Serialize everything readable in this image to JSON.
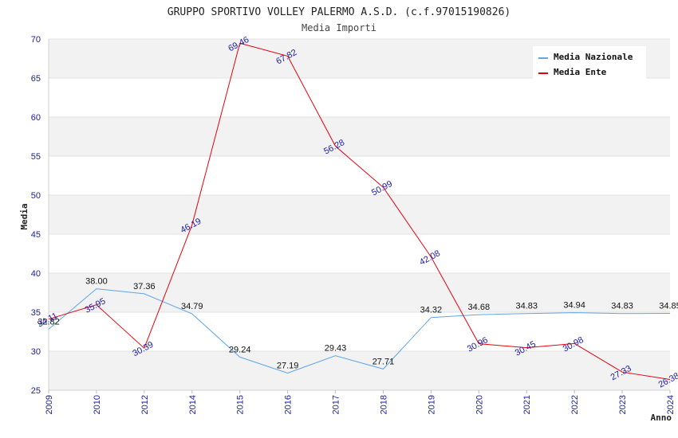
{
  "header": {
    "title": "GRUPPO SPORTIVO VOLLEY PALERMO A.S.D. (c.f.97015190826)",
    "subtitle": "Media Importi"
  },
  "chart_data": {
    "type": "line",
    "title": "GRUPPO SPORTIVO VOLLEY PALERMO A.S.D. (c.f.97015190826)",
    "subtitle": "Media Importi",
    "xlabel": "Anno",
    "ylabel": "Media",
    "ylim": [
      25,
      70
    ],
    "yticks": [
      25,
      30,
      35,
      40,
      45,
      50,
      55,
      60,
      65,
      70
    ],
    "categories": [
      "2009",
      "2010",
      "2012",
      "2014",
      "2015",
      "2016",
      "2017",
      "2018",
      "2019",
      "2020",
      "2021",
      "2022",
      "2023",
      "2024"
    ],
    "series": [
      {
        "name": "Media Nazionale",
        "color": "#5da5e8",
        "values": [
          32.82,
          38.0,
          37.36,
          34.79,
          29.24,
          27.19,
          29.43,
          27.71,
          34.32,
          34.68,
          34.83,
          34.94,
          34.83,
          34.85
        ],
        "labels": [
          "32.82",
          "38.00",
          "37.36",
          "34.79",
          "29.24",
          "27.19",
          "29.43",
          "27.71",
          "34.32",
          "34.68",
          "34.83",
          "34.94",
          "34.83",
          "34.85"
        ]
      },
      {
        "name": "Media Ente",
        "color": "#e8000b",
        "values": [
          34.11,
          35.95,
          30.39,
          46.19,
          69.46,
          67.82,
          56.28,
          50.99,
          42.08,
          30.96,
          30.45,
          30.98,
          27.33,
          26.38
        ],
        "labels": [
          "34.11",
          "35.95",
          "30.39",
          "46.19",
          "69.46",
          "67.82",
          "56.28",
          "50.99",
          "42.08",
          "30.96",
          "30.45",
          "30.98",
          "27.33",
          "26.38"
        ]
      }
    ],
    "grid": true,
    "legend_position": "top-right"
  }
}
